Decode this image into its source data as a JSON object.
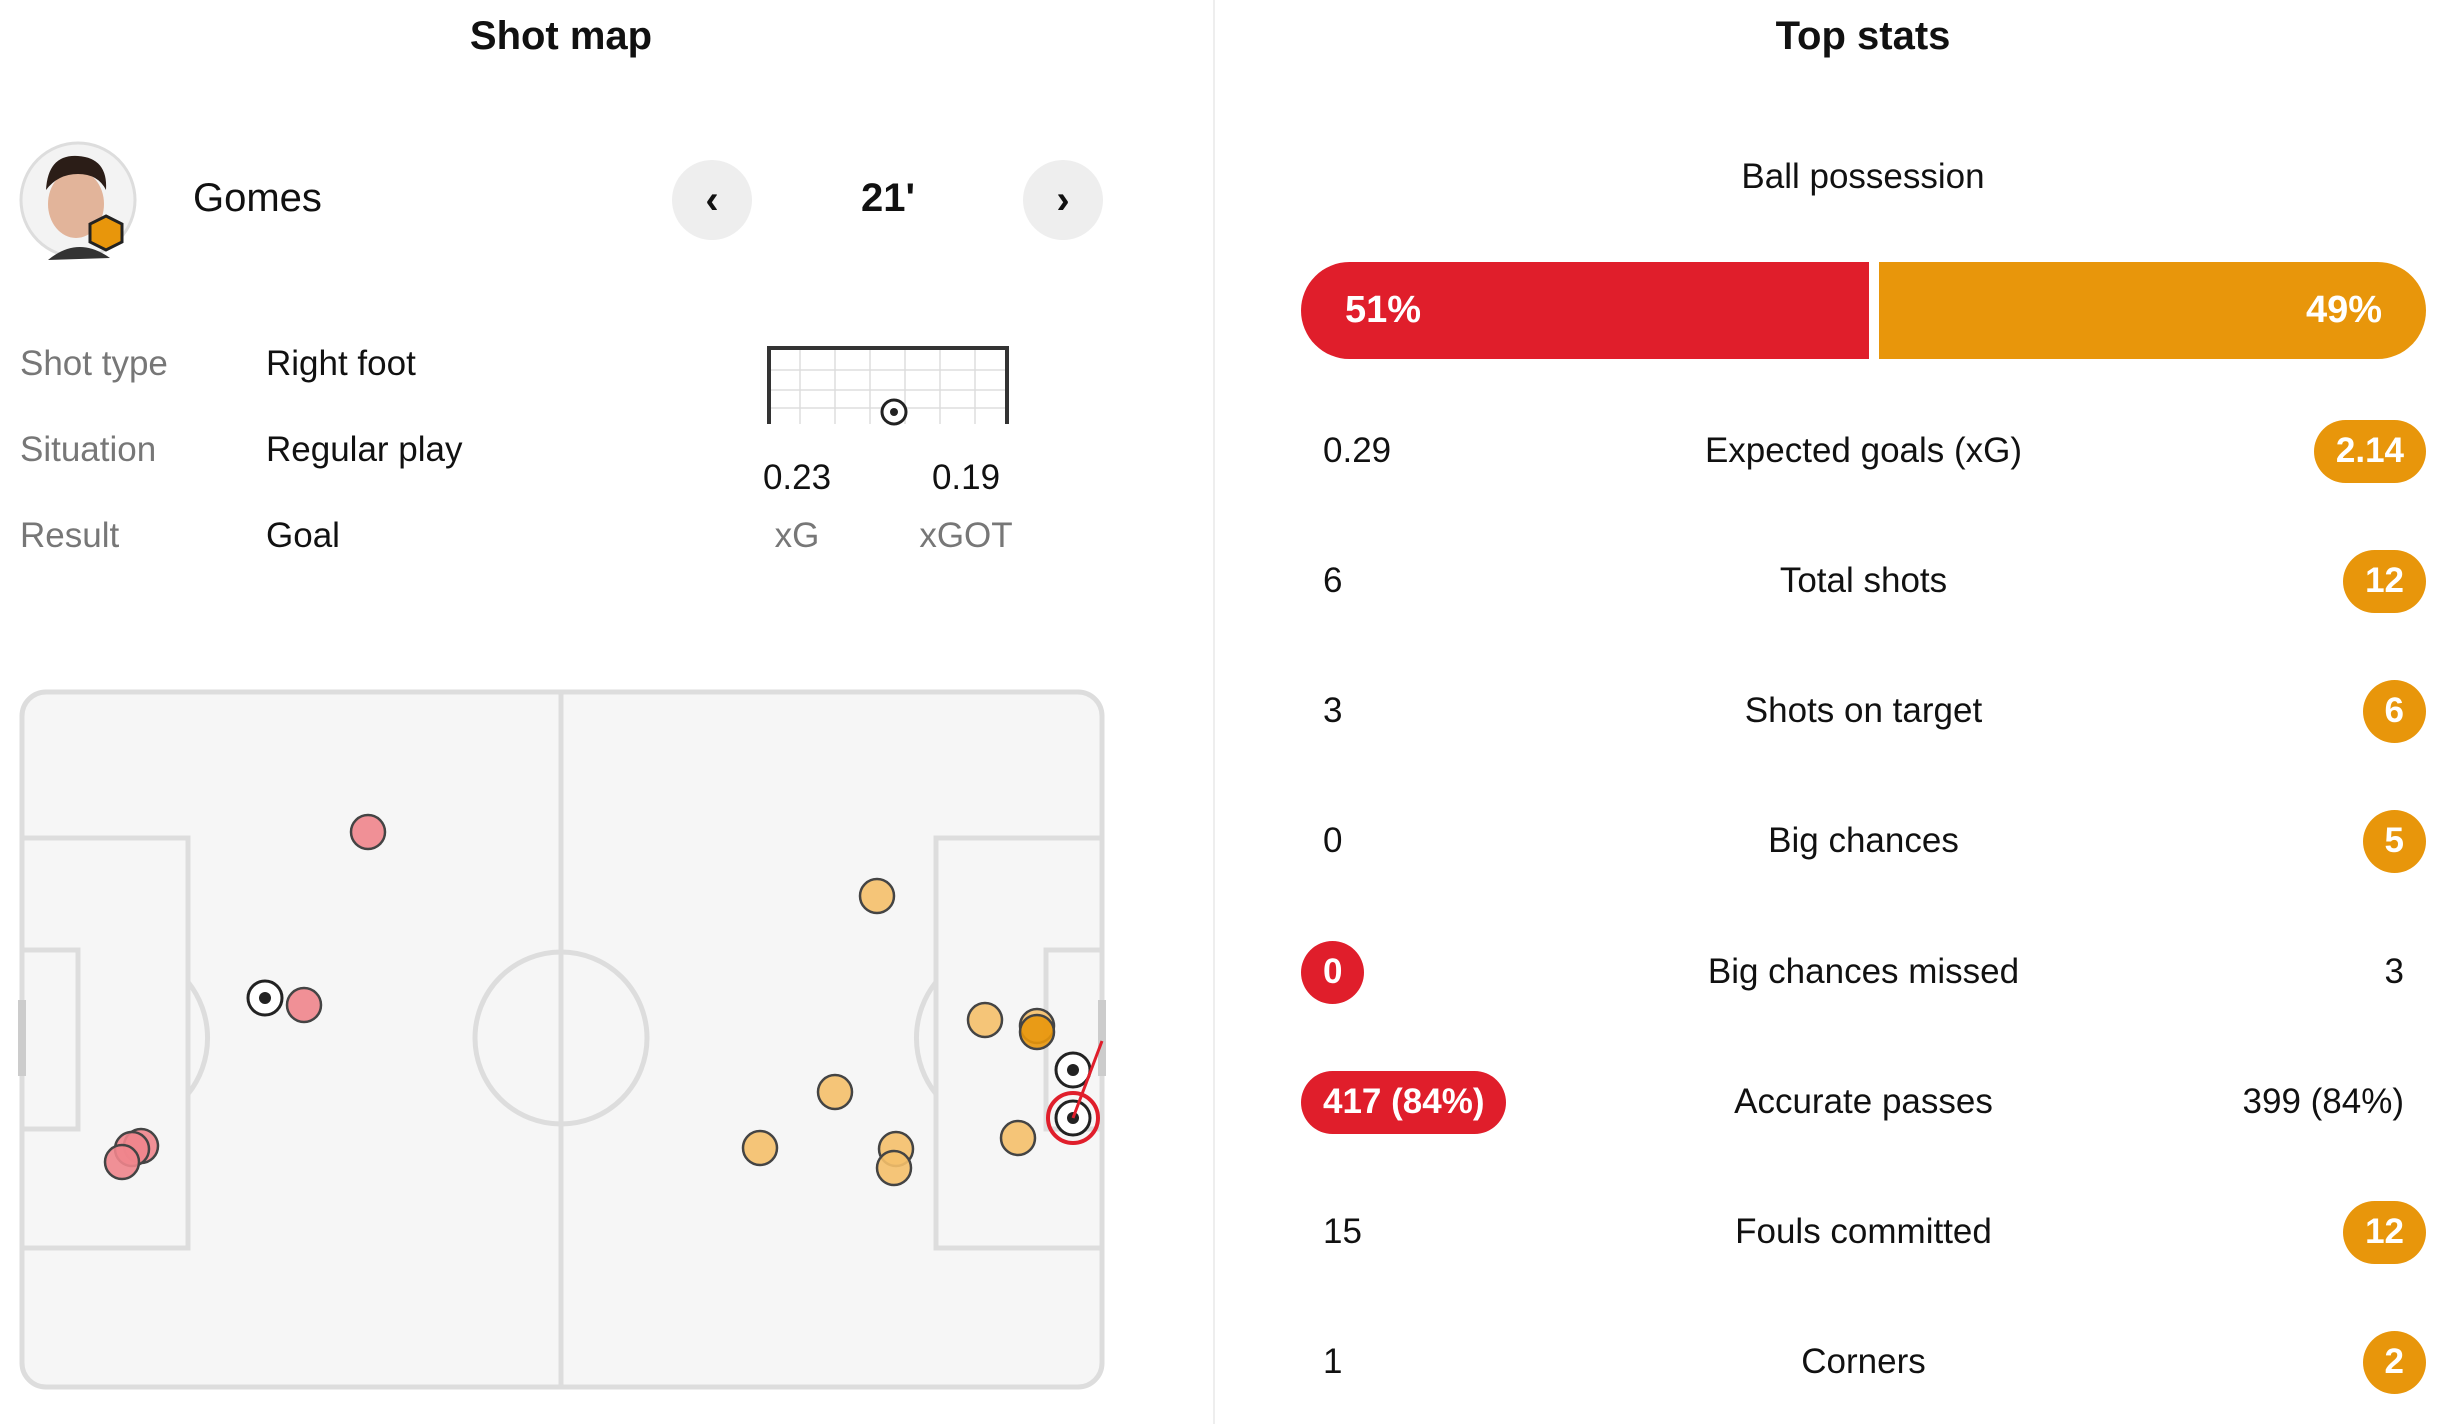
{
  "shot_map": {
    "title": "Shot map",
    "player": "Gomes",
    "minute": "21'",
    "details": [
      {
        "label": "Shot type",
        "value": "Right foot"
      },
      {
        "label": "Situation",
        "value": "Regular play"
      },
      {
        "label": "Result",
        "value": "Goal"
      }
    ],
    "xg": "0.23",
    "xg_label": "xG",
    "xgot": "0.19",
    "xgot_label": "xGOT"
  },
  "top_stats": {
    "title": "Top stats",
    "possession": {
      "label": "Ball possession",
      "home": 51,
      "away": 49,
      "home_label": "51%",
      "away_label": "49%",
      "home_color": "#e01e2b",
      "away_color": "#e8960b"
    },
    "rows": [
      {
        "label": "Expected goals (xG)",
        "home": "0.29",
        "away": "2.14",
        "highlight": "away"
      },
      {
        "label": "Total shots",
        "home": "6",
        "away": "12",
        "highlight": "away"
      },
      {
        "label": "Shots on target",
        "home": "3",
        "away": "6",
        "highlight": "away"
      },
      {
        "label": "Big chances",
        "home": "0",
        "away": "5",
        "highlight": "away"
      },
      {
        "label": "Big chances missed",
        "home": "0",
        "away": "3",
        "highlight": "home"
      },
      {
        "label": "Accurate passes",
        "home": "417 (84%)",
        "away": "399 (84%)",
        "highlight": "home"
      },
      {
        "label": "Fouls committed",
        "home": "15",
        "away": "12",
        "highlight": "away"
      },
      {
        "label": "Corners",
        "home": "1",
        "away": "2",
        "highlight": "away"
      }
    ]
  }
}
